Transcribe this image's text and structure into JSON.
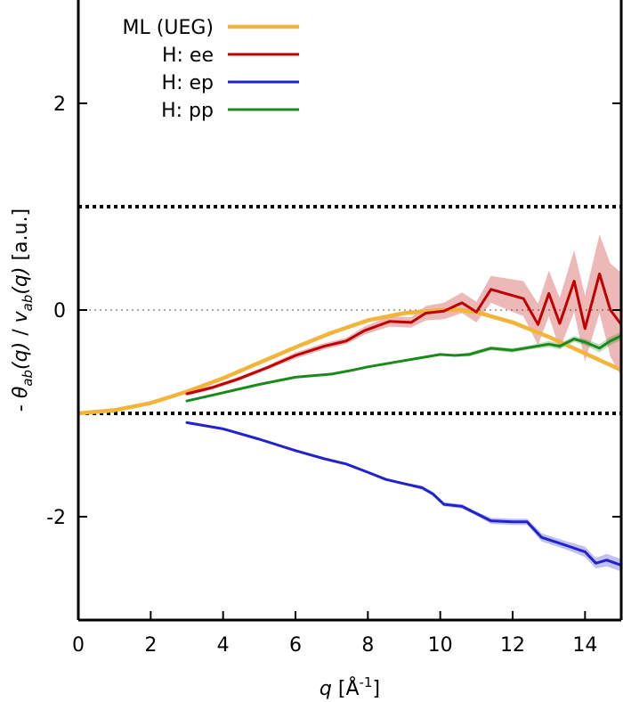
{
  "chart_data": {
    "type": "line",
    "xlim": [
      0,
      15
    ],
    "ylim": [
      -3,
      3
    ],
    "xticks": [
      "0",
      "2",
      "4",
      "6",
      "8",
      "10",
      "12",
      "14"
    ],
    "yticks": [
      "-2",
      "0",
      "2"
    ],
    "xlabel": {
      "var": "q",
      "unit": "[Å",
      "exp": "-1",
      "close": "]"
    },
    "ylabel": {
      "prefix": "- ",
      "num_var": "θ",
      "num_sub": "ab",
      "num_arg": "(q)",
      "sep": " / ",
      "den_var": "v",
      "den_sub": "ab",
      "den_arg": "(q)",
      "unit": " [a.u.]"
    },
    "reference_lines": [
      {
        "y": 1,
        "style": "thick-dotted"
      },
      {
        "y": -1,
        "style": "thick-dotted"
      },
      {
        "y": 0,
        "style": "thin-dotted"
      }
    ],
    "legend_position": "top-left",
    "series": [
      {
        "name": "ML (UEG)",
        "color": "#f2b53a",
        "x": [
          0,
          1,
          2,
          3,
          4,
          5,
          6,
          7,
          8,
          9,
          10,
          10.5,
          11,
          12,
          13,
          14,
          15
        ],
        "y": [
          -1.0,
          -0.97,
          -0.9,
          -0.79,
          -0.66,
          -0.51,
          -0.36,
          -0.22,
          -0.1,
          -0.03,
          0.0,
          0.0,
          -0.02,
          -0.12,
          -0.26,
          -0.42,
          -0.58
        ]
      },
      {
        "name": "H: ee",
        "color": "#c00000",
        "x": [
          3.0,
          3.7,
          4.4,
          5.2,
          6.0,
          6.8,
          7.4,
          7.9,
          8.6,
          9.2,
          9.6,
          10.1,
          10.6,
          11.0,
          11.4,
          12.3,
          12.7,
          13.0,
          13.3,
          13.7,
          14.0,
          14.4,
          14.7,
          15.0
        ],
        "y": [
          -0.81,
          -0.75,
          -0.67,
          -0.56,
          -0.44,
          -0.35,
          -0.3,
          -0.2,
          -0.11,
          -0.12,
          -0.03,
          -0.01,
          0.07,
          -0.02,
          0.2,
          0.11,
          -0.14,
          0.16,
          -0.13,
          0.28,
          -0.18,
          0.35,
          0.0,
          -0.14
        ],
        "err": [
          0.02,
          0.02,
          0.02,
          0.02,
          0.03,
          0.03,
          0.03,
          0.04,
          0.05,
          0.05,
          0.07,
          0.08,
          0.1,
          0.1,
          0.13,
          0.17,
          0.2,
          0.22,
          0.25,
          0.3,
          0.32,
          0.38,
          0.45,
          0.5
        ]
      },
      {
        "name": "H: ep",
        "color": "#2222cc",
        "x": [
          3.0,
          4.0,
          5.0,
          6.0,
          6.8,
          7.4,
          8.0,
          8.5,
          9.0,
          9.5,
          9.8,
          10.1,
          10.6,
          11.0,
          11.4,
          12.0,
          12.4,
          12.8,
          13.5,
          14.0,
          14.3,
          14.6,
          15.0
        ],
        "y": [
          -1.09,
          -1.15,
          -1.25,
          -1.36,
          -1.44,
          -1.49,
          -1.57,
          -1.64,
          -1.68,
          -1.72,
          -1.78,
          -1.88,
          -1.9,
          -1.97,
          -2.04,
          -2.05,
          -2.05,
          -2.2,
          -2.28,
          -2.34,
          -2.45,
          -2.42,
          -2.47
        ],
        "err": [
          0.01,
          0.01,
          0.01,
          0.01,
          0.01,
          0.01,
          0.01,
          0.01,
          0.01,
          0.02,
          0.02,
          0.02,
          0.02,
          0.02,
          0.03,
          0.03,
          0.03,
          0.04,
          0.04,
          0.05,
          0.05,
          0.06,
          0.06
        ]
      },
      {
        "name": "H: pp",
        "color": "#1a8a1a",
        "x": [
          3.0,
          4.0,
          5.0,
          6.0,
          7.0,
          7.6,
          8.0,
          8.5,
          9.0,
          9.5,
          10.0,
          10.4,
          10.8,
          11.0,
          11.4,
          12.0,
          12.5,
          13.0,
          13.3,
          13.7,
          14.0,
          14.4,
          14.7,
          15.0
        ],
        "y": [
          -0.88,
          -0.8,
          -0.72,
          -0.65,
          -0.62,
          -0.58,
          -0.55,
          -0.52,
          -0.49,
          -0.46,
          -0.43,
          -0.44,
          -0.43,
          -0.41,
          -0.37,
          -0.39,
          -0.36,
          -0.33,
          -0.35,
          -0.28,
          -0.31,
          -0.37,
          -0.3,
          -0.25
        ],
        "err": [
          0.01,
          0.01,
          0.01,
          0.01,
          0.01,
          0.01,
          0.01,
          0.01,
          0.01,
          0.01,
          0.01,
          0.01,
          0.02,
          0.02,
          0.02,
          0.02,
          0.02,
          0.03,
          0.03,
          0.03,
          0.03,
          0.04,
          0.04,
          0.04
        ]
      }
    ]
  }
}
